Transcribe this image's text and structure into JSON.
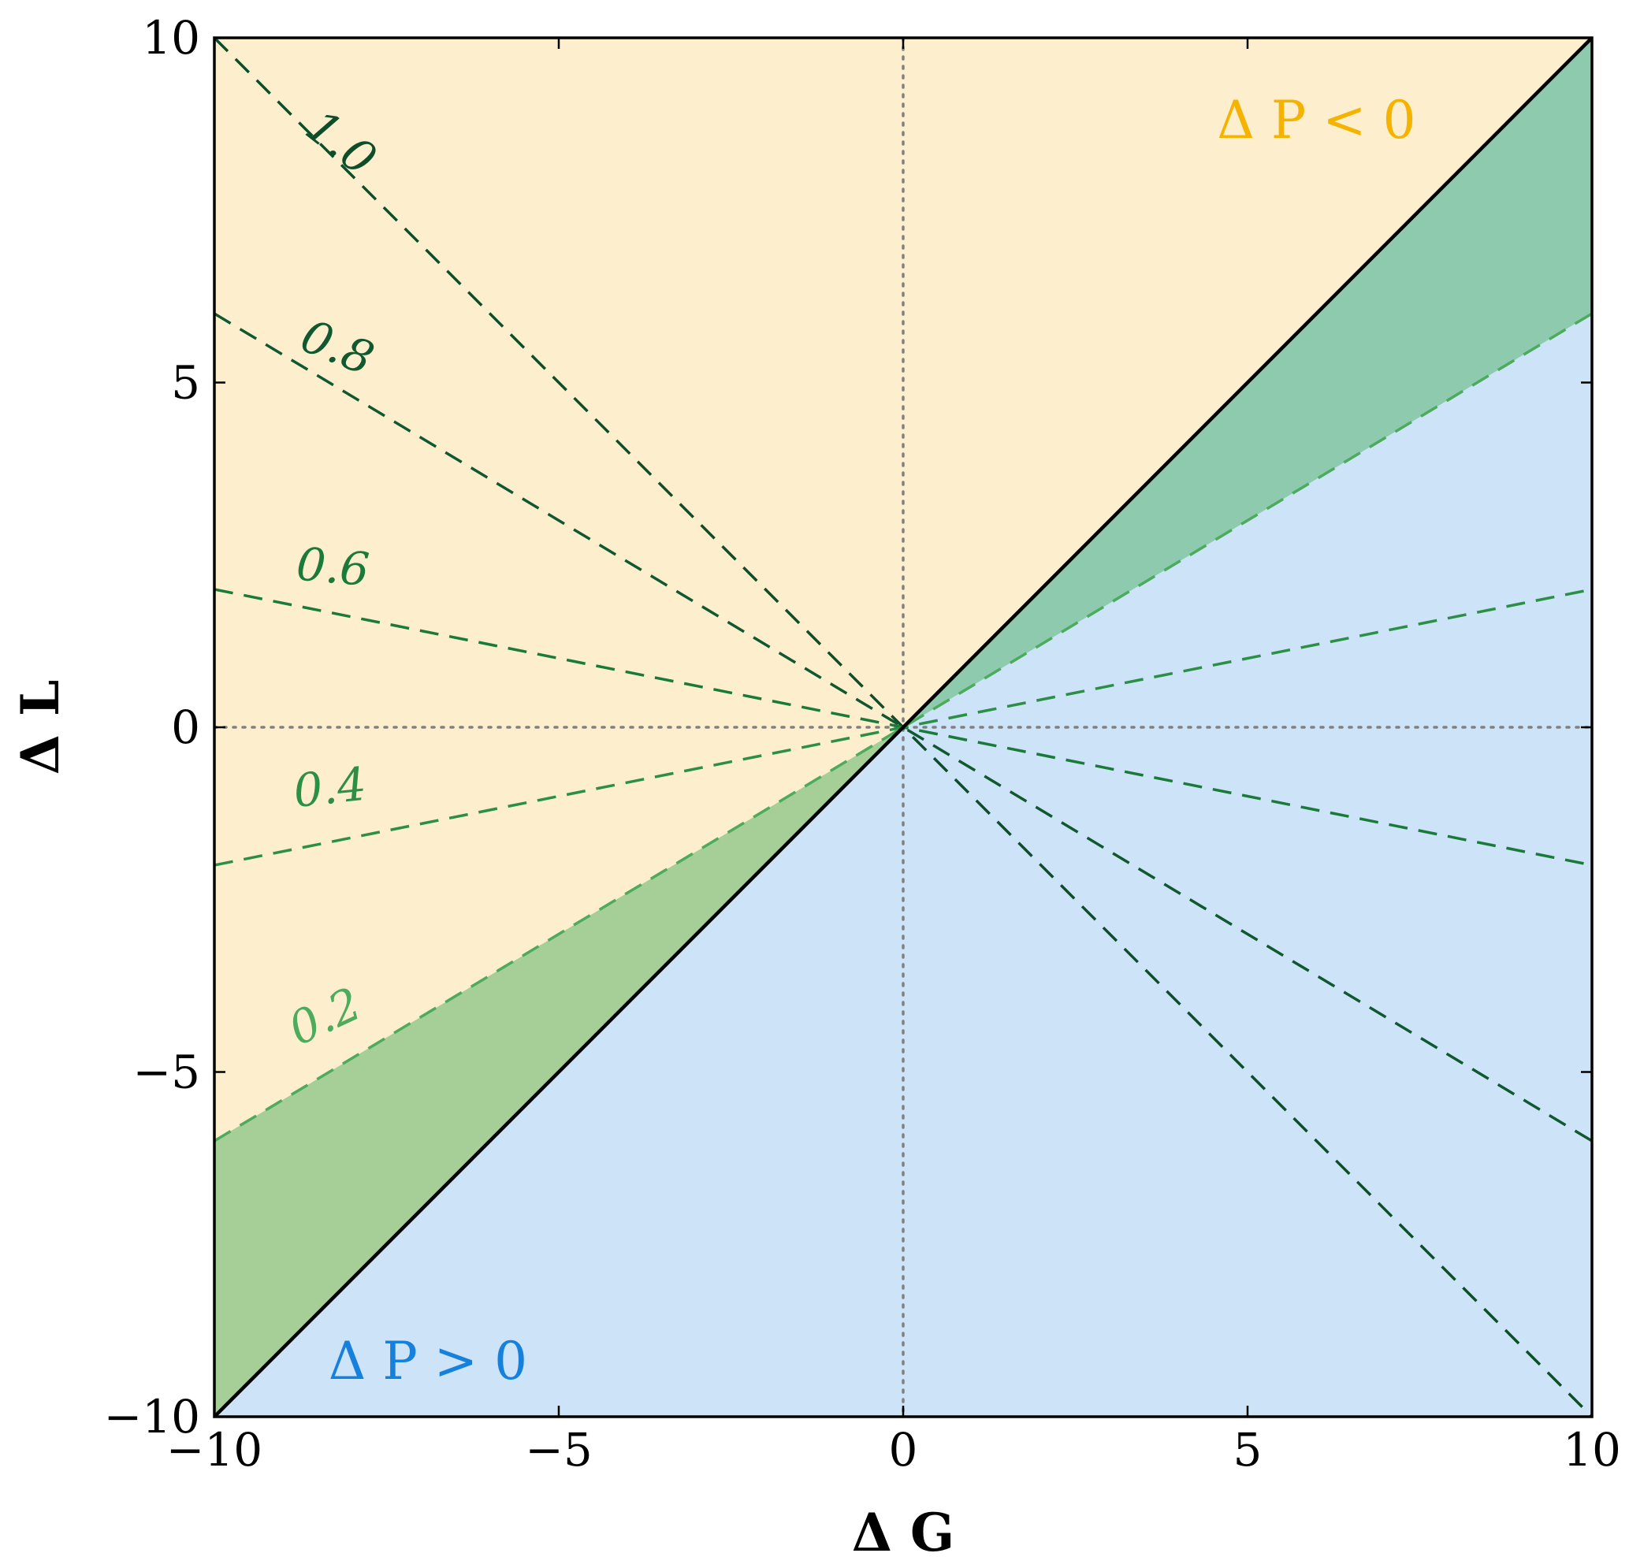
{
  "chart_data": {
    "type": "line",
    "title": "",
    "xlabel": "Δ G",
    "ylabel": "Δ L",
    "xlim": [
      -10,
      10
    ],
    "ylim": [
      -10,
      10
    ],
    "x_ticks": [
      -10,
      -5,
      0,
      5,
      10
    ],
    "y_ticks": [
      -10,
      -5,
      0,
      5,
      10
    ],
    "x_tick_labels": [
      "−10",
      "−5",
      "0",
      "5",
      "10"
    ],
    "y_tick_labels": [
      "−10",
      "−5",
      "0",
      "5",
      "10"
    ],
    "grid": false,
    "reference_lines": [
      {
        "type": "vertical",
        "x": 0,
        "style": "dotted"
      },
      {
        "type": "horizontal",
        "y": 0,
        "style": "dotted"
      }
    ],
    "boundary_line": {
      "slope": 1,
      "style": "solid",
      "color": "#000000"
    },
    "regions": [
      {
        "name": "ΔP < 0",
        "description": "above ΔL = ΔG",
        "color": "#fdefcd"
      },
      {
        "name": "ΔP > 0",
        "description": "below ΔL = ΔG",
        "color": "#cde4f8"
      },
      {
        "name": "band-top",
        "between_slopes": [
          0.6,
          1.0
        ],
        "x_range": [
          0,
          10
        ],
        "color": "#8ecaae"
      },
      {
        "name": "band-bottom",
        "between_slopes": [
          0.6,
          1.0
        ],
        "x_range": [
          -10,
          0
        ],
        "color": "#a5cf97"
      }
    ],
    "series": [
      {
        "label": "1.0",
        "slope": -1.0,
        "color": "#0d4d2a"
      },
      {
        "label": "0.8",
        "slope": -0.6,
        "color": "#10582f"
      },
      {
        "label": "0.6",
        "slope": -0.2,
        "color": "#1a7a3a"
      },
      {
        "label": "0.4",
        "slope": 0.2,
        "color": "#2b8f45"
      },
      {
        "label": "0.2",
        "slope": 0.6,
        "color": "#4cab5c"
      }
    ],
    "annotations": [
      {
        "text": "Δ P < 0",
        "color": "#f5b300"
      },
      {
        "text": "Δ P > 0",
        "color": "#1581dc"
      }
    ]
  }
}
